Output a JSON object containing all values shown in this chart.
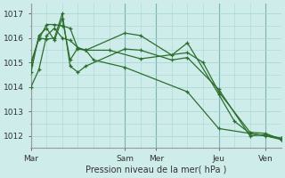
{
  "bg_color": "#cdecea",
  "grid_color": "#a8d8d4",
  "line_color": "#2d6e2d",
  "title": "Pression niveau de la mer( hPa )",
  "ylim": [
    1011.5,
    1017.4
  ],
  "yticks": [
    1012,
    1013,
    1014,
    1015,
    1016,
    1017
  ],
  "xlim": [
    0,
    96
  ],
  "day_labels": [
    "Mar",
    "Sam",
    "Mer",
    "Jeu",
    "Ven"
  ],
  "day_positions": [
    0,
    36,
    48,
    72,
    90
  ],
  "vline_positions": [
    0,
    36,
    48,
    72,
    90
  ],
  "series": [
    {
      "x": [
        0,
        3,
        6,
        9,
        12,
        15,
        18,
        21,
        24,
        36,
        60,
        72,
        84,
        96
      ],
      "y": [
        1014.0,
        1014.7,
        1016.1,
        1016.4,
        1016.0,
        1015.9,
        1015.6,
        1015.5,
        1015.1,
        1014.8,
        1013.8,
        1012.3,
        1012.1,
        1011.9
      ]
    },
    {
      "x": [
        0,
        3,
        6,
        9,
        12,
        15,
        18,
        21,
        36,
        42,
        54,
        60,
        72,
        78,
        84,
        90,
        96
      ],
      "y": [
        1014.6,
        1016.1,
        1016.4,
        1015.9,
        1016.8,
        1015.1,
        1015.6,
        1015.5,
        1016.2,
        1016.1,
        1015.3,
        1015.8,
        1013.7,
        1012.6,
        1012.1,
        1012.0,
        1011.85
      ]
    },
    {
      "x": [
        0,
        3,
        6,
        9,
        12,
        15,
        18,
        21,
        30,
        42,
        60,
        66,
        72,
        84,
        90,
        96
      ],
      "y": [
        1015.0,
        1015.95,
        1016.55,
        1016.55,
        1016.5,
        1016.4,
        1015.55,
        1015.5,
        1015.5,
        1015.15,
        1015.4,
        1015.0,
        1013.8,
        1012.15,
        1012.1,
        1011.85
      ]
    },
    {
      "x": [
        0,
        3,
        6,
        9,
        12,
        15,
        18,
        21,
        36,
        42,
        54,
        60,
        72,
        84,
        90,
        96
      ],
      "y": [
        1014.9,
        1016.0,
        1015.95,
        1016.0,
        1017.0,
        1014.85,
        1014.6,
        1014.85,
        1015.55,
        1015.5,
        1015.1,
        1015.2,
        1013.9,
        1012.0,
        1012.05,
        1011.9
      ]
    }
  ]
}
